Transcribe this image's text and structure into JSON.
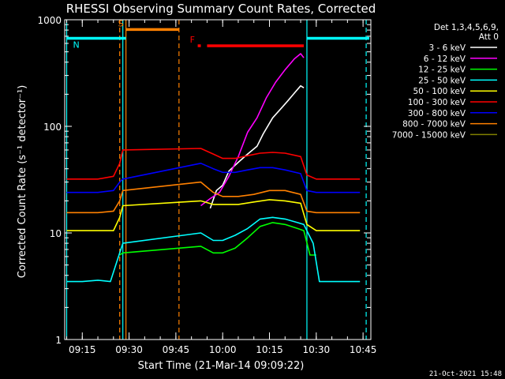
{
  "chart_data": {
    "type": "line",
    "title": "RHESSI Observing Summary Count Rates, Corrected",
    "xlabel": "Start Time (21-Mar-14 09:09:22)",
    "ylabel": "Corrected Count Rate (s⁻¹ detector⁻¹)",
    "y_scale": "log",
    "ylim": [
      1,
      1000
    ],
    "xlim": [
      "09:09:22",
      "10:47:30"
    ],
    "x_ticks": [
      "09:15",
      "09:30",
      "09:45",
      "10:00",
      "10:15",
      "10:30",
      "10:45"
    ],
    "y_ticks": [
      "1",
      "10",
      "100",
      "1000"
    ],
    "legend": {
      "placement": "top-right",
      "header": [
        "Det 1,3,4,5,6,9,",
        "Att 0"
      ],
      "entries": [
        {
          "label": "3 - 6 keV",
          "color": "#ffffff"
        },
        {
          "label": "6 - 12 keV",
          "color": "#ff00ff"
        },
        {
          "label": "12 - 25 keV",
          "color": "#00ff00"
        },
        {
          "label": "25 - 50 keV",
          "color": "#00ffff"
        },
        {
          "label": "50 - 100 keV",
          "color": "#ffff00"
        },
        {
          "label": "100 - 300 keV",
          "color": "#ff0000"
        },
        {
          "label": "300 - 800 keV",
          "color": "#0000ff"
        },
        {
          "label": "800 - 7000 keV",
          "color": "#ff8000"
        },
        {
          "label": "7000 - 15000 keV",
          "color": "#808000"
        }
      ]
    },
    "series": [
      {
        "name": "3 - 6 keV",
        "color": "#ffffff",
        "points": [
          [
            "09:56",
            17
          ],
          [
            "09:58",
            25
          ],
          [
            "10:00",
            28
          ],
          [
            "10:02",
            38
          ],
          [
            "10:05",
            46
          ],
          [
            "10:08",
            55
          ],
          [
            "10:11",
            65
          ],
          [
            "10:13",
            85
          ],
          [
            "10:16",
            120
          ],
          [
            "10:19",
            150
          ],
          [
            "10:21",
            175
          ],
          [
            "10:23",
            205
          ],
          [
            "10:25",
            240
          ],
          [
            "10:26",
            230
          ]
        ]
      },
      {
        "name": "6 - 12 keV",
        "color": "#ff00ff",
        "points": [
          [
            "09:53",
            18
          ],
          [
            "09:56",
            21
          ],
          [
            "09:59",
            24
          ],
          [
            "10:02",
            34
          ],
          [
            "10:05",
            52
          ],
          [
            "10:08",
            88
          ],
          [
            "10:11",
            120
          ],
          [
            "10:14",
            185
          ],
          [
            "10:17",
            260
          ],
          [
            "10:20",
            340
          ],
          [
            "10:23",
            430
          ],
          [
            "10:25",
            480
          ],
          [
            "10:26",
            440
          ]
        ]
      },
      {
        "name": "12 - 25 keV",
        "color": "#00ff00",
        "points": [
          [
            "09:27",
            6.2
          ],
          [
            "09:28",
            6.5
          ],
          [
            "09:53",
            7.5
          ],
          [
            "09:57",
            6.5
          ],
          [
            "10:00",
            6.5
          ],
          [
            "10:04",
            7.2
          ],
          [
            "10:08",
            9
          ],
          [
            "10:12",
            11.5
          ],
          [
            "10:16",
            12.5
          ],
          [
            "10:20",
            12
          ],
          [
            "10:24",
            11
          ],
          [
            "10:26",
            10.5
          ],
          [
            "10:28",
            6.2
          ],
          [
            "10:30",
            6.2
          ]
        ]
      },
      {
        "name": "25 - 50 keV",
        "color": "#00ffff",
        "points": [
          [
            "09:10",
            3.5
          ],
          [
            "09:15",
            3.5
          ],
          [
            "09:20",
            3.6
          ],
          [
            "09:24",
            3.5
          ],
          [
            "09:27",
            6.5
          ],
          [
            "09:28",
            8
          ],
          [
            "09:53",
            10
          ],
          [
            "09:57",
            8.5
          ],
          [
            "10:00",
            8.5
          ],
          [
            "10:04",
            9.5
          ],
          [
            "10:08",
            11
          ],
          [
            "10:12",
            13.5
          ],
          [
            "10:16",
            14
          ],
          [
            "10:20",
            13.5
          ],
          [
            "10:24",
            12.5
          ],
          [
            "10:26",
            12
          ],
          [
            "10:29",
            8
          ],
          [
            "10:31",
            3.5
          ],
          [
            "10:35",
            3.5
          ],
          [
            "10:40",
            3.5
          ],
          [
            "10:44",
            3.5
          ]
        ]
      },
      {
        "name": "50 - 100 keV",
        "color": "#ffff00",
        "points": [
          [
            "09:10",
            10.5
          ],
          [
            "09:15",
            10.5
          ],
          [
            "09:20",
            10.5
          ],
          [
            "09:25",
            10.5
          ],
          [
            "09:27",
            14
          ],
          [
            "09:28",
            18
          ],
          [
            "09:53",
            20
          ],
          [
            "09:57",
            18.5
          ],
          [
            "10:00",
            18.5
          ],
          [
            "10:05",
            18.5
          ],
          [
            "10:10",
            19.5
          ],
          [
            "10:15",
            20.5
          ],
          [
            "10:20",
            20
          ],
          [
            "10:25",
            19
          ],
          [
            "10:27",
            12
          ],
          [
            "10:30",
            10.5
          ],
          [
            "10:35",
            10.5
          ],
          [
            "10:40",
            10.5
          ],
          [
            "10:44",
            10.5
          ]
        ]
      },
      {
        "name": "100 - 300 keV",
        "color": "#ff0000",
        "points": [
          [
            "09:10",
            32
          ],
          [
            "09:15",
            32
          ],
          [
            "09:20",
            32
          ],
          [
            "09:25",
            34
          ],
          [
            "09:27",
            45
          ],
          [
            "09:28",
            60
          ],
          [
            "09:53",
            62
          ],
          [
            "09:57",
            55
          ],
          [
            "10:00",
            50
          ],
          [
            "10:04",
            50
          ],
          [
            "10:08",
            53
          ],
          [
            "10:12",
            56
          ],
          [
            "10:16",
            57
          ],
          [
            "10:20",
            56
          ],
          [
            "10:25",
            52
          ],
          [
            "10:27",
            35
          ],
          [
            "10:30",
            32
          ],
          [
            "10:35",
            32
          ],
          [
            "10:40",
            32
          ],
          [
            "10:44",
            32
          ]
        ]
      },
      {
        "name": "300 - 800 keV",
        "color": "#0000ff",
        "points": [
          [
            "09:10",
            24
          ],
          [
            "09:15",
            24
          ],
          [
            "09:20",
            24
          ],
          [
            "09:25",
            25
          ],
          [
            "09:27",
            30
          ],
          [
            "09:28",
            32
          ],
          [
            "09:53",
            45
          ],
          [
            "09:57",
            40
          ],
          [
            "10:00",
            37
          ],
          [
            "10:04",
            37
          ],
          [
            "10:08",
            39
          ],
          [
            "10:12",
            41
          ],
          [
            "10:16",
            41
          ],
          [
            "10:20",
            39
          ],
          [
            "10:25",
            36
          ],
          [
            "10:27",
            25
          ],
          [
            "10:30",
            24
          ],
          [
            "10:35",
            24
          ],
          [
            "10:40",
            24
          ],
          [
            "10:44",
            24
          ]
        ]
      },
      {
        "name": "800 - 7000 keV",
        "color": "#ff8000",
        "points": [
          [
            "09:10",
            15.5
          ],
          [
            "09:15",
            15.5
          ],
          [
            "09:20",
            15.5
          ],
          [
            "09:25",
            16
          ],
          [
            "09:27",
            20
          ],
          [
            "09:28",
            25
          ],
          [
            "09:53",
            30
          ],
          [
            "09:57",
            24
          ],
          [
            "10:00",
            22
          ],
          [
            "10:05",
            22
          ],
          [
            "10:10",
            23
          ],
          [
            "10:15",
            25
          ],
          [
            "10:20",
            25
          ],
          [
            "10:25",
            23
          ],
          [
            "10:27",
            16
          ],
          [
            "10:30",
            15.5
          ],
          [
            "10:35",
            15.5
          ],
          [
            "10:40",
            15.5
          ],
          [
            "10:44",
            15.5
          ]
        ]
      },
      {
        "name": "7000 - 15000 keV",
        "color": "#808000",
        "points": []
      }
    ],
    "flag_bars": [
      {
        "label": "S",
        "color": "#ff8000",
        "start": "09:29",
        "end": "09:46",
        "level": 810
      },
      {
        "label": "N",
        "color": "#00ffff",
        "start": "09:10",
        "end": "09:29",
        "level": 670
      },
      {
        "label": "",
        "color": "#00ffff",
        "start": "10:27",
        "end": "10:47",
        "level": 670
      },
      {
        "label": "F",
        "color": "#ff0000",
        "start": "09:52",
        "end": "09:53",
        "level": 570
      },
      {
        "label": "",
        "color": "#ff0000",
        "start": "09:55",
        "end": "10:26",
        "level": 570
      }
    ],
    "vlines": [
      {
        "time": "09:10",
        "color": "#00ffff",
        "dash": false
      },
      {
        "time": "09:27",
        "color": "#ff8000",
        "dash": true
      },
      {
        "time": "09:28",
        "color": "#00ffff",
        "dash": false
      },
      {
        "time": "09:29",
        "color": "#ff8000",
        "dash": false
      },
      {
        "time": "09:46",
        "color": "#ff8000",
        "dash": true
      },
      {
        "time": "10:27",
        "color": "#00ffff",
        "dash": false
      },
      {
        "time": "10:46",
        "color": "#00ffff",
        "dash": true
      }
    ]
  },
  "footer": {
    "date_stamp": "21-Oct-2021 15:48"
  }
}
